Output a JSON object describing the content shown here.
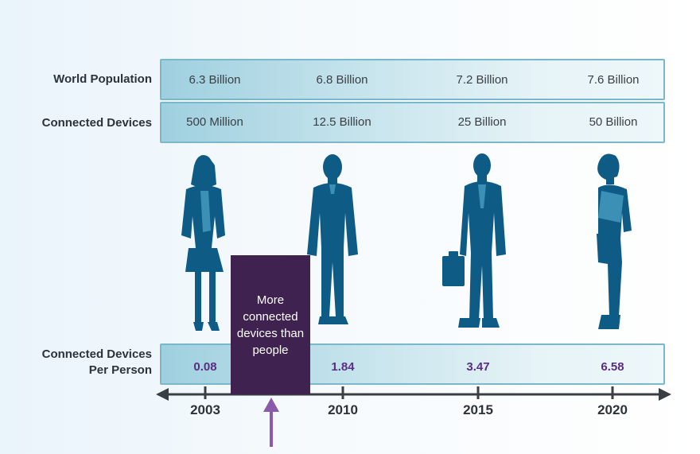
{
  "rows": {
    "population_label": "World Population",
    "devices_label": "Connected Devices",
    "per_person_label_line1": "Connected Devices",
    "per_person_label_line2": "Per Person"
  },
  "columns": [
    {
      "year": "2003",
      "population": "6.3 Billion",
      "devices": "500 Million",
      "per_person": "0.08"
    },
    {
      "year": "2010",
      "population": "6.8 Billion",
      "devices": "12.5 Billion",
      "per_person": "1.84"
    },
    {
      "year": "2015",
      "population": "7.2 Billion",
      "devices": "25 Billion",
      "per_person": "3.47"
    },
    {
      "year": "2020",
      "population": "7.6 Billion",
      "devices": "50 Billion",
      "per_person": "6.58"
    }
  ],
  "callout": {
    "line1": "More",
    "line2": "connected",
    "line3": "devices than",
    "line4": "people"
  },
  "colors": {
    "silhouette": "#0e5c85",
    "accent_purple": "#5a2d82",
    "callout_bg": "#3f2250",
    "arrow": "#8a5aa8"
  }
}
